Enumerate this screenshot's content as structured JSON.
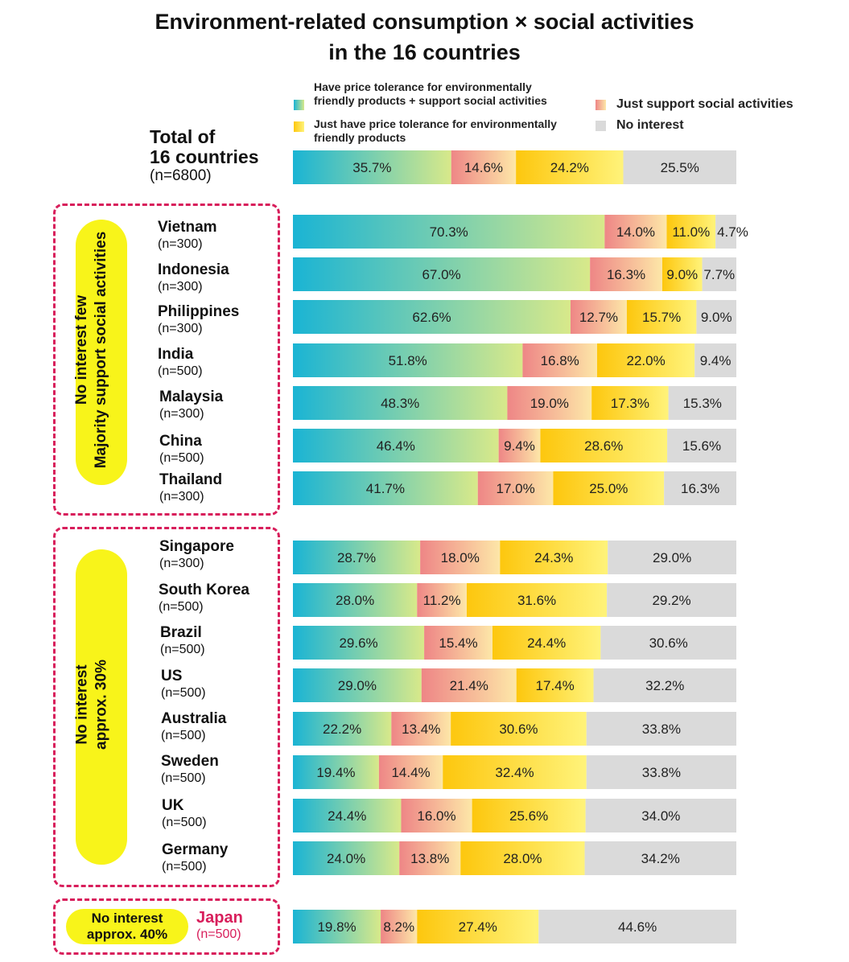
{
  "title_line1": "Environment-related consumption × social activities",
  "title_line2": "in the 16 countries",
  "legend": [
    {
      "label": "Have price tolerance for environmentally friendly products + support social activities",
      "line1": "Have price tolerance for environmentally",
      "line2": "friendly products + support social activities"
    },
    {
      "label": "Just have price tolerance for environmentally friendly products",
      "line1": "Just have price tolerance for environmentally",
      "line2": "friendly products"
    },
    {
      "label": "Just support social activities"
    },
    {
      "label": "No interest"
    }
  ],
  "colors": {
    "tolerance_support_start": "#1ab4d4",
    "tolerance_support_end": "#d8e98a",
    "support_start": "#ee8686",
    "support_end": "#fde7a8",
    "tolerance_start": "#fdc70e",
    "tolerance_end": "#fff37a",
    "no_interest": "#dadada",
    "box_border": "#d81e5b",
    "group_pill": "#f8f41a",
    "japan_label": "#d81e5b"
  },
  "groups": [
    {
      "label_line1": "No interest few",
      "label_line2": "Majority support social activities"
    },
    {
      "label_line1": "No interest",
      "label_line2": "approx. 30%"
    },
    {
      "label_line1": "No interest",
      "label_line2": "approx. 40%"
    }
  ],
  "chart_data": {
    "type": "bar",
    "orientation": "horizontal",
    "stacked": true,
    "normalized": true,
    "title": "Environment-related consumption × social activities in the 16 countries",
    "categories": [
      {
        "name": "Total of 16 countries",
        "line1": "Total of",
        "line2": "16 countries",
        "n": "(n=6800)"
      },
      {
        "name": "Vietnam",
        "n": "(n=300)"
      },
      {
        "name": "Indonesia",
        "n": "(n=300)"
      },
      {
        "name": "Philippines",
        "n": "(n=300)"
      },
      {
        "name": "India",
        "n": "(n=500)"
      },
      {
        "name": "Malaysia",
        "n": "(n=300)"
      },
      {
        "name": "China",
        "n": "(n=500)"
      },
      {
        "name": "Thailand",
        "n": "(n=300)"
      },
      {
        "name": "Singapore",
        "n": "(n=300)"
      },
      {
        "name": "South Korea",
        "n": "(n=500)"
      },
      {
        "name": "Brazil",
        "n": "(n=500)"
      },
      {
        "name": "US",
        "n": "(n=500)"
      },
      {
        "name": "Australia",
        "n": "(n=500)"
      },
      {
        "name": "Sweden",
        "n": "(n=500)"
      },
      {
        "name": "UK",
        "n": "(n=500)"
      },
      {
        "name": "Germany",
        "n": "(n=500)"
      },
      {
        "name": "Japan",
        "n": "(n=500)"
      }
    ],
    "series": [
      {
        "name": "Have price tolerance for environmentally friendly products + support social activities",
        "values": [
          35.7,
          70.3,
          67.0,
          62.6,
          51.8,
          48.3,
          46.4,
          41.7,
          28.7,
          28.0,
          29.6,
          29.0,
          22.2,
          19.4,
          24.4,
          24.0,
          19.8
        ]
      },
      {
        "name": "Just support social activities",
        "values": [
          14.6,
          14.0,
          16.3,
          12.7,
          16.8,
          19.0,
          9.4,
          17.0,
          18.0,
          11.2,
          15.4,
          21.4,
          13.4,
          14.4,
          16.0,
          13.8,
          8.2
        ]
      },
      {
        "name": "Just have price tolerance for environmentally friendly products",
        "values": [
          24.2,
          11.0,
          9.0,
          15.7,
          22.0,
          17.3,
          28.6,
          25.0,
          24.3,
          31.6,
          24.4,
          17.4,
          30.6,
          32.4,
          25.6,
          28.0,
          27.4
        ]
      },
      {
        "name": "No interest",
        "values": [
          25.5,
          4.7,
          7.7,
          9.0,
          9.4,
          15.3,
          15.6,
          16.3,
          29.0,
          29.2,
          30.6,
          32.2,
          33.8,
          33.8,
          34.0,
          34.2,
          44.6
        ]
      }
    ],
    "xlim": [
      0,
      100
    ],
    "value_format": "percent"
  }
}
